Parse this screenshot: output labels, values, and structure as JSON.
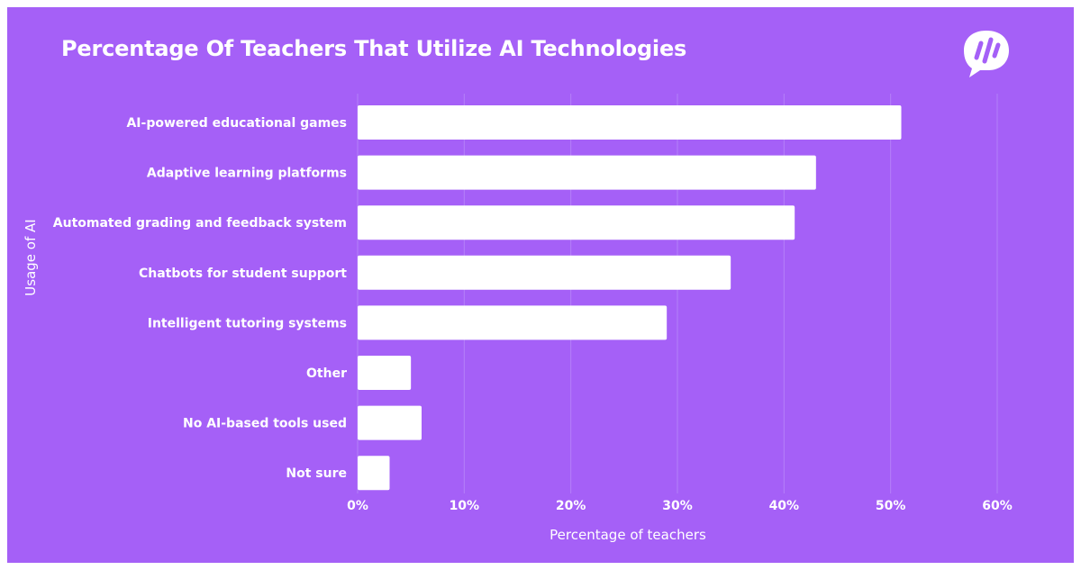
{
  "colors": {
    "background": "#a560f7",
    "bar": "#ffffff",
    "grid": "#b47ff8",
    "text": "#ffffff"
  },
  "logo": {
    "icon": "speech-bubble-logo-icon"
  },
  "chart_data": {
    "type": "bar",
    "orientation": "horizontal",
    "title": "Percentage Of Teachers That Utilize AI Technologies",
    "xlabel": "Percentage of teachers",
    "ylabel": "Usage of AI",
    "categories": [
      "AI-powered educational games",
      "Adaptive learning platforms",
      "Automated grading and feedback system",
      "Chatbots for student support",
      "Intelligent tutoring systems",
      "Other",
      "No AI-based tools used",
      "Not sure"
    ],
    "values": [
      51,
      43,
      41,
      35,
      29,
      5,
      6,
      3
    ],
    "xlim": [
      0,
      60
    ],
    "xticks": [
      0,
      10,
      20,
      30,
      40,
      50,
      60
    ],
    "xtick_labels": [
      "0%",
      "10%",
      "20%",
      "30%",
      "40%",
      "50%",
      "60%"
    ],
    "grid": "vertical",
    "legend": "none"
  }
}
